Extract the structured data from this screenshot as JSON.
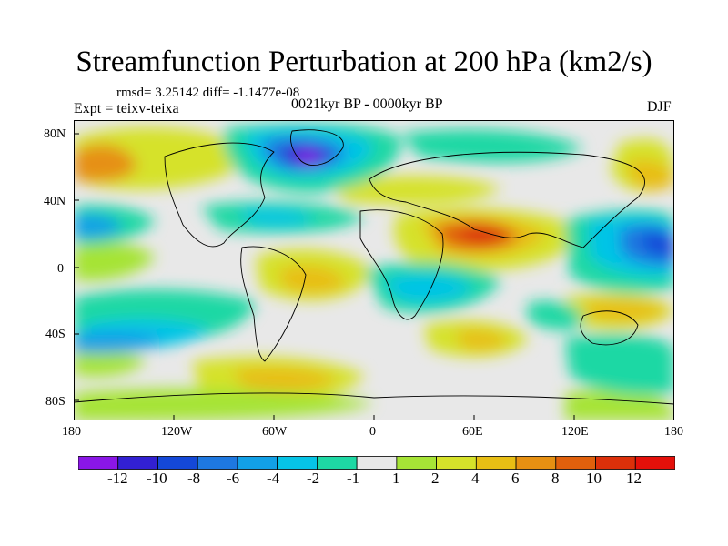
{
  "title": "Streamfunction Perturbation at 200 hPa (km2/s)",
  "stats": "rmsd= 3.25142  diff= -1.1477e-08",
  "experiment": "Expt = teixv-teixa",
  "period": "0021kyr BP - 0000kyr BP",
  "season": "DJF",
  "lat_labels": [
    "80N",
    "40N",
    "0",
    "40S",
    "80S"
  ],
  "lon_labels": [
    "180",
    "120W",
    "60W",
    "0",
    "60E",
    "120E",
    "180"
  ],
  "colorbar": {
    "labels": [
      "-12",
      "-10",
      "-8",
      "-6",
      "-4",
      "-2",
      "-1",
      "1",
      "2",
      "4",
      "6",
      "8",
      "10",
      "12"
    ],
    "colors": [
      "#8a16e6",
      "#3220d2",
      "#1448d8",
      "#1e78e0",
      "#12a0e6",
      "#06c4e6",
      "#1ed8a4",
      "#e8e8e8",
      "#a6e436",
      "#d6e22a",
      "#e8be14",
      "#e69012",
      "#e0600c",
      "#dc300a",
      "#e4100a"
    ]
  },
  "map_legend_levels": {
    "min": -12,
    "max": 12,
    "neutral_band": [
      -1,
      1
    ]
  }
}
